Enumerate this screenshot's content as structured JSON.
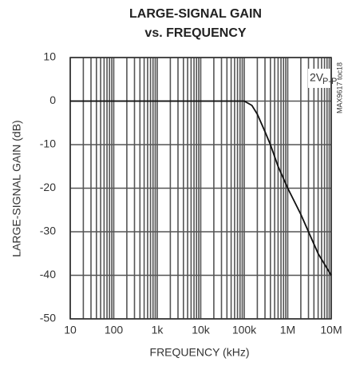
{
  "chart_data": {
    "type": "line",
    "title": "LARGE-SIGNAL GAIN",
    "subtitle": "vs. FREQUENCY",
    "x_label": "FREQUENCY (kHz)",
    "y_label": "LARGE-SIGNAL GAIN (dB)",
    "annotation": "2V",
    "annotation_subscript": "P-P",
    "side_note": "MAX9617 toc18",
    "x_scale": "log",
    "grid": true,
    "x": [
      10,
      1000,
      50000,
      100000,
      150000,
      200000,
      300000,
      400000,
      600000,
      1000000,
      2000000,
      3000000,
      5000000,
      10000000
    ],
    "series": [
      {
        "name": "2VP-P",
        "color": "#111111",
        "values": [
          0,
          0,
          0,
          0,
          -1,
          -3,
          -7,
          -10,
          -15,
          -20,
          -26,
          -30,
          -35,
          -40
        ]
      }
    ],
    "xlim": [
      10,
      10000000
    ],
    "ylim": [
      -50,
      10
    ],
    "xticks": [
      {
        "value": 10,
        "label": "10"
      },
      {
        "value": 100,
        "label": "100"
      },
      {
        "value": 1000,
        "label": "1k"
      },
      {
        "value": 10000,
        "label": "10k"
      },
      {
        "value": 100000,
        "label": "100k"
      },
      {
        "value": 1000000,
        "label": "1M"
      },
      {
        "value": 10000000,
        "label": "10M"
      }
    ],
    "yticks": [
      -50,
      -40,
      -30,
      -20,
      -10,
      0,
      10
    ]
  }
}
